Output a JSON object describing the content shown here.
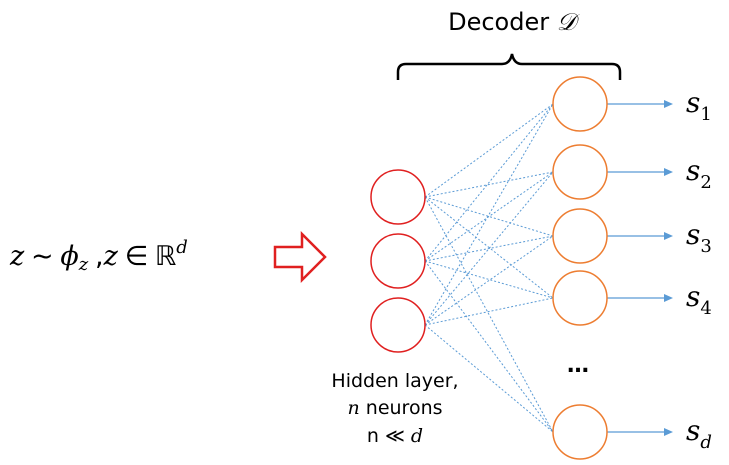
{
  "title": {
    "text": "Decoder ",
    "symbol": "𝒟"
  },
  "input_formula": {
    "z": "z",
    "tilde": "∼",
    "phi": "ϕ",
    "phi_sub": "z",
    "comma": ",",
    "z2": "z",
    "in": "∈",
    "reals": "ℝ",
    "power": "d"
  },
  "hidden_label": {
    "line1": "Hidden layer,",
    "line2_var": "n",
    "line2_rest": " neurons",
    "line3_n": "n",
    "line3_op": " ≪ ",
    "line3_d": "d"
  },
  "ellipsis": "…",
  "outputs": [
    {
      "base": "s",
      "sub": "1"
    },
    {
      "base": "s",
      "sub": "2"
    },
    {
      "base": "s",
      "sub": "3"
    },
    {
      "base": "s",
      "sub": "4"
    },
    {
      "base": "s",
      "sub": "d"
    }
  ],
  "colors": {
    "hidden_node": "#e02020",
    "output_node": "#ed7d31",
    "edge": "#5b9bd5",
    "arrow": "#5b9bd5",
    "input_arrow": "#e02020",
    "brace": "#000000"
  }
}
